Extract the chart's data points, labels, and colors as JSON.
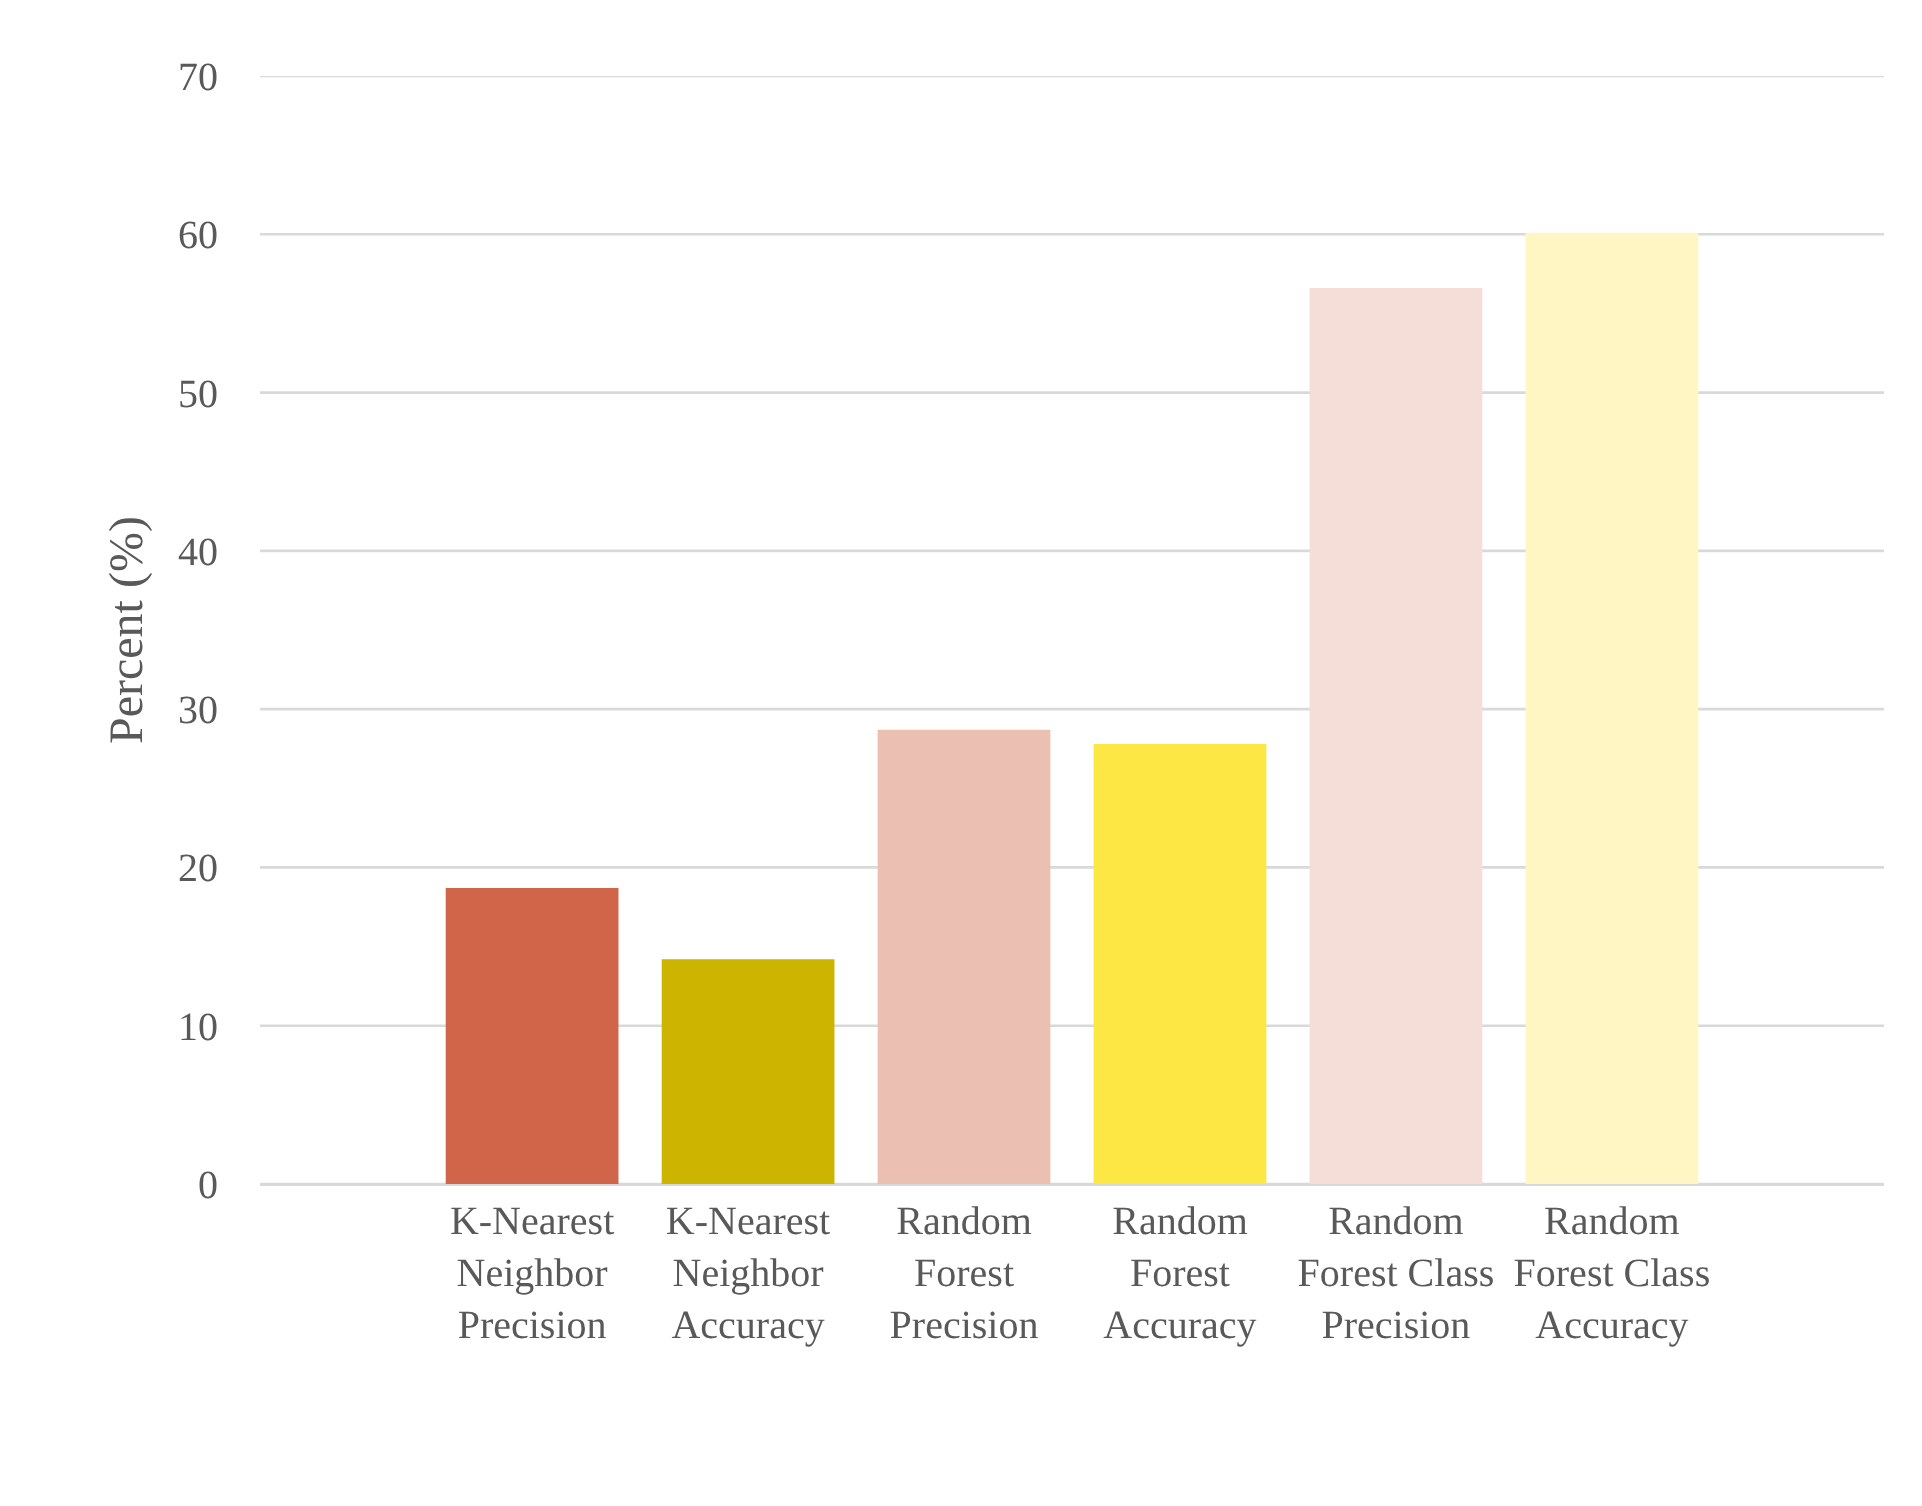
{
  "chart_data": {
    "type": "bar",
    "ylabel": "Percent (%)",
    "categories": [
      "K-Nearest Neighbor Precision",
      "K-Nearest Neighbor Accuracy",
      "Random Forest Precision",
      "Random Forest Accuracy",
      "Random Forest Class Precision",
      "Random Forest Class Accuracy"
    ],
    "values": [
      18.7,
      14.2,
      28.7,
      27.8,
      56.6,
      60.1
    ],
    "colors": [
      "#d0654a",
      "#ccb400",
      "#ebc0b3",
      "#fde745",
      "#f5ddd8",
      "#fff6c4"
    ],
    "ylim": [
      0,
      70
    ],
    "yticks": [
      0,
      10,
      20,
      30,
      40,
      50,
      60,
      70
    ],
    "grid": "y"
  }
}
